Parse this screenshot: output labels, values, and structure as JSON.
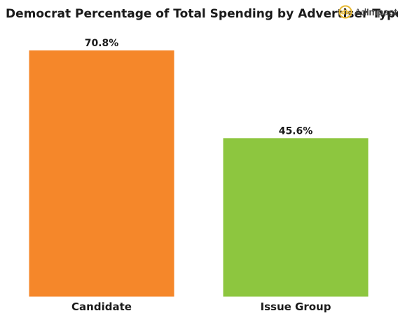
{
  "header": {
    "title": "Democrat Percentage of Total Spending by Advertiser Type",
    "logo_text_light": "Ad",
    "logo_text_bold": "Impact"
  },
  "colors": {
    "candidate": "#f5872a",
    "issue_group": "#8dc63f",
    "logo": "#e8b830"
  },
  "chart_data": {
    "type": "bar",
    "title": "Democrat Percentage of Total Spending by Advertiser Type",
    "categories": [
      "Candidate",
      "Issue Group"
    ],
    "values": [
      70.8,
      45.6
    ],
    "value_labels": [
      "70.8%",
      "45.6%"
    ],
    "colors": [
      "#f5872a",
      "#8dc63f"
    ],
    "xlabel": "",
    "ylabel": "",
    "ylim": [
      0,
      70.8
    ],
    "grid": false,
    "legend": "none"
  }
}
